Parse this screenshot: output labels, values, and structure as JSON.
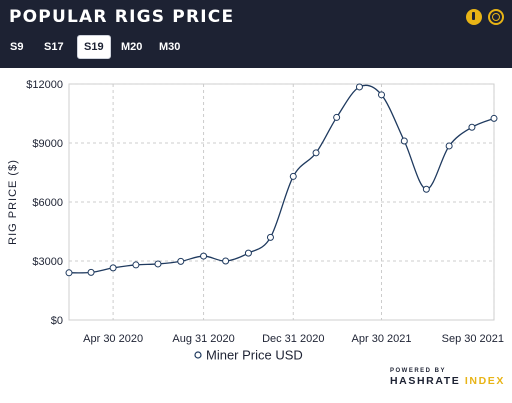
{
  "header": {
    "title": "POPULAR RIGS PRICE",
    "tabs": [
      {
        "label": "S9",
        "active": false
      },
      {
        "label": "S17",
        "active": false
      },
      {
        "label": "S19",
        "active": true
      },
      {
        "label": "M20",
        "active": false
      },
      {
        "label": "M30",
        "active": false
      }
    ],
    "icons": [
      "coin-icon",
      "aperture-icon"
    ]
  },
  "chart_data": {
    "type": "line",
    "title": "",
    "xlabel": "",
    "ylabel": "RIG PRICE ($)",
    "ylim": [
      0,
      12000
    ],
    "yticks": [
      0,
      3000,
      6000,
      9000,
      12000
    ],
    "ytick_labels": [
      "$0",
      "$3000",
      "$6000",
      "$9000",
      "$12000"
    ],
    "xticks": [
      "2020-04-30",
      "2020-08-31",
      "2020-12-31",
      "2021-04-30",
      "2021-09-30"
    ],
    "xtick_labels": [
      "Apr 30 2020",
      "Aug 31 2020",
      "Dec 31 2020",
      "Apr 30 2021",
      "Sep 30 2021"
    ],
    "grid": true,
    "legend_position": "bottom-center",
    "series": [
      {
        "name": "Miner Price USD",
        "color": "#1f3a5f",
        "points": [
          {
            "x": "2020-03-01",
            "y": 2400
          },
          {
            "x": "2020-03-31",
            "y": 2420
          },
          {
            "x": "2020-04-30",
            "y": 2650
          },
          {
            "x": "2020-05-31",
            "y": 2800
          },
          {
            "x": "2020-06-30",
            "y": 2850
          },
          {
            "x": "2020-07-31",
            "y": 2980
          },
          {
            "x": "2020-08-31",
            "y": 3250
          },
          {
            "x": "2020-09-30",
            "y": 3000
          },
          {
            "x": "2020-10-31",
            "y": 3400
          },
          {
            "x": "2020-11-30",
            "y": 4200
          },
          {
            "x": "2020-12-31",
            "y": 7300
          },
          {
            "x": "2021-01-31",
            "y": 8500
          },
          {
            "x": "2021-02-28",
            "y": 10300
          },
          {
            "x": "2021-03-31",
            "y": 11850
          },
          {
            "x": "2021-04-30",
            "y": 11450
          },
          {
            "x": "2021-05-31",
            "y": 9100
          },
          {
            "x": "2021-06-30",
            "y": 6650
          },
          {
            "x": "2021-07-31",
            "y": 8850
          },
          {
            "x": "2021-08-31",
            "y": 9800
          },
          {
            "x": "2021-09-30",
            "y": 10250
          }
        ]
      }
    ]
  },
  "colors": {
    "header_bg": "#1d2233",
    "accent": "#e8b416",
    "line": "#1f3a5f",
    "grid": "#cccccc"
  },
  "footer": {
    "powered_by": "POWERED BY",
    "brand_main": "HASHRATE",
    "brand_accent": "INDEX"
  }
}
